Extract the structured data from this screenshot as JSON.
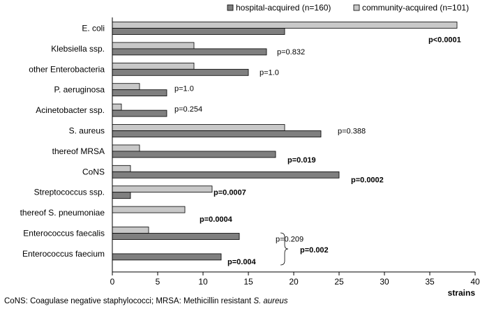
{
  "chart_data": {
    "type": "bar",
    "orientation": "horizontal",
    "categories": [
      "E. coli",
      "Klebsiella ssp.",
      "other Enterobacteria",
      "P. aeruginosa",
      "Acinetobacter ssp.",
      "S. aureus",
      "thereof MRSA",
      "CoNS",
      "Streptococcus ssp.",
      "thereof S. pneumoniae",
      "Enterococcus faecalis",
      "Enterococcus faecium"
    ],
    "series": [
      {
        "name": "hospital-acquired (n=160)",
        "color": "#7f7f7f",
        "values": [
          19,
          17,
          15,
          6,
          6,
          23,
          18,
          25,
          2,
          0,
          14,
          12
        ]
      },
      {
        "name": "community-acquired (n=101)",
        "color": "#c8c8c8",
        "values": [
          38,
          9,
          9,
          3,
          1,
          19,
          3,
          2,
          11,
          8,
          4,
          0
        ]
      }
    ],
    "p_values": [
      {
        "text": "p<0.0001",
        "bold": true
      },
      {
        "text": "p=0.832",
        "bold": false
      },
      {
        "text": "p=1.0",
        "bold": false
      },
      {
        "text": "p=1.0",
        "bold": false
      },
      {
        "text": "p=0.254",
        "bold": false
      },
      {
        "text": "p=0.388",
        "bold": false
      },
      {
        "text": "p=0.019",
        "bold": true
      },
      {
        "text": "p=0.0002",
        "bold": true
      },
      {
        "text": "p=0.0007",
        "bold": true
      },
      {
        "text": "p=0.0004",
        "bold": true
      },
      {
        "text": "p=0.209",
        "bold": false
      },
      {
        "text": "p=0.004",
        "bold": true
      }
    ],
    "combined_p": {
      "text": "p=0.002",
      "bold": true
    },
    "xlim": [
      0,
      40
    ],
    "xticks": [
      0,
      5,
      10,
      15,
      20,
      25,
      30,
      35,
      40
    ],
    "xlabel": "strains",
    "ylabel": "",
    "title": "",
    "grid": false,
    "legend_position": "top-right"
  },
  "footnote": {
    "text": "CoNS: Coagulase negative staphylococci; MRSA: Methicillin resistant ",
    "italic": "S. aureus"
  }
}
